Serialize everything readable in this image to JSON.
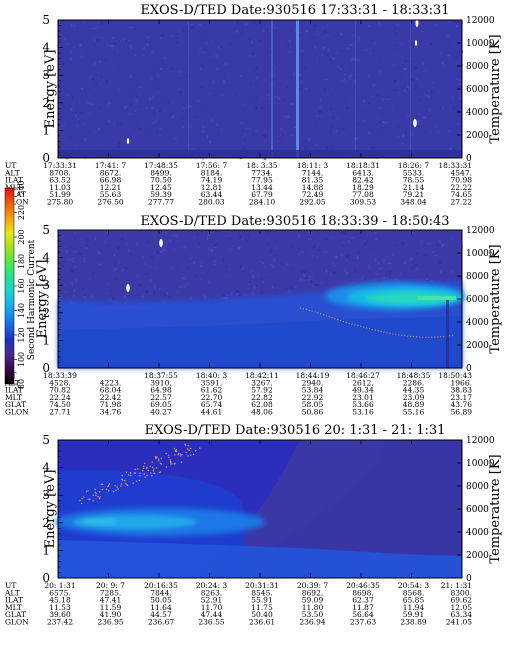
{
  "chart_data": [
    {
      "type": "heatmap",
      "title": "EXOS-D/TED   Date:930516  17:33:31 - 18:33:31",
      "ylabel": "Energy [eV]",
      "y2label": "Temperature [K]",
      "ylim": [
        0,
        5
      ],
      "y2lim": [
        0,
        12000
      ],
      "yticks": [
        0,
        1,
        2,
        3,
        4,
        5
      ],
      "y2ticks": [
        0,
        2000,
        4000,
        6000,
        8000,
        10000,
        12000
      ],
      "xticks": [
        "17:33:31",
        "17:41: 7",
        "17:48:35",
        "17:56: 7",
        "18: 3:35",
        "18:11: 3",
        "18:18:31",
        "18:26: 7",
        "18:33:31"
      ],
      "ephemeris": [
        {
          "label": "UT",
          "values": [
            "17:33:31",
            "17:41: 7",
            "17:48:35",
            "17:56: 7",
            "18: 3:35",
            "18:11: 3",
            "18:18:31",
            "18:26: 7",
            "18:33:31"
          ]
        },
        {
          "label": "ALT",
          "values": [
            "8708.",
            "8672.",
            "8499.",
            "8184.",
            "7734.",
            "7144.",
            "6413.",
            "5533.",
            "4547."
          ]
        },
        {
          "label": "ILAT",
          "values": [
            "63.52",
            "66.98",
            "70.50",
            "74.19",
            "77.95",
            "81.35",
            "82.42",
            "78.55",
            "70.98"
          ]
        },
        {
          "label": "MLT",
          "values": [
            "11.03",
            "12.21",
            "12.45",
            "12.81",
            "13.44",
            "14.88",
            "18.29",
            "21.14",
            "22.22"
          ]
        },
        {
          "label": "GLAT",
          "values": [
            "51.99",
            "55.63",
            "59.39",
            "63.44",
            "67.79",
            "72.49",
            "77.08",
            "79.21",
            "74.65"
          ]
        },
        {
          "label": "GLON",
          "values": [
            "275.80",
            "276.50",
            "277.77",
            "280.03",
            "284.10",
            "292.05",
            "309.53",
            "348.04",
            "27.22"
          ]
        }
      ]
    },
    {
      "type": "heatmap",
      "title": "EXOS-D/TED   Date:930516  18:33:39 - 18:50:43",
      "ylabel": "Energy [eV]",
      "y2label": "Temperature [K]",
      "ylim": [
        0,
        5
      ],
      "y2lim": [
        0,
        12000
      ],
      "yticks": [
        0,
        1,
        2,
        3,
        4,
        5
      ],
      "y2ticks": [
        0,
        2000,
        4000,
        6000,
        8000,
        10000,
        12000
      ],
      "xticks": [
        "18:33:39",
        "18:37:55",
        "18:40: 3",
        "18:42:11",
        "18:44:19",
        "18:46:27",
        "18:48:35",
        "18:50:43"
      ],
      "ephemeris": [
        {
          "label": "UT",
          "values": [
            "18:33:39",
            "",
            "18:37:55",
            "18:40: 3",
            "18:42:11",
            "18:44:19",
            "18:46:27",
            "18:48:35",
            "18:50:43"
          ]
        },
        {
          "label": "ALT",
          "values": [
            "4528.",
            "4223.",
            "3910.",
            "3591.",
            "3267.",
            "2940.",
            "2612.",
            "2286.",
            "1966."
          ]
        },
        {
          "label": "ILAT",
          "values": [
            "70.82",
            "68.04",
            "64.98",
            "61.62",
            "57.92",
            "53.84",
            "49.34",
            "44.35",
            "38.83"
          ]
        },
        {
          "label": "MLT",
          "values": [
            "22.24",
            "22.42",
            "22.57",
            "22.70",
            "22.82",
            "22.92",
            "23.01",
            "23.09",
            "23.17"
          ]
        },
        {
          "label": "GLAT",
          "values": [
            "74.50",
            "71.98",
            "69.05",
            "65.74",
            "62.08",
            "58.05",
            "53.66",
            "48.89",
            "43.76"
          ]
        },
        {
          "label": "GLON",
          "values": [
            "27.71",
            "34.76",
            "40.27",
            "44.61",
            "48.06",
            "50.86",
            "53.16",
            "55.16",
            "56.89"
          ]
        }
      ]
    },
    {
      "type": "heatmap",
      "title": "EXOS-D/TED   Date:930516  20: 1:31 - 21: 1:31",
      "ylabel": "Energy [eV]",
      "y2label": "Temperature [K]",
      "ylim": [
        0,
        5
      ],
      "y2lim": [
        0,
        12000
      ],
      "yticks": [
        0,
        1,
        2,
        3,
        4,
        5
      ],
      "y2ticks": [
        0,
        2000,
        4000,
        6000,
        8000,
        10000,
        12000
      ],
      "xticks": [
        "20: 1:31",
        "20: 9: 7",
        "20:16:35",
        "20:24: 3",
        "20:31:31",
        "20:39: 7",
        "20:46:35",
        "20:54: 3",
        "21: 1:31"
      ],
      "ephemeris": [
        {
          "label": "UT",
          "values": [
            "20: 1:31",
            "20: 9: 7",
            "20:16:35",
            "20:24: 3",
            "20:31:31",
            "20:39: 7",
            "20:46:35",
            "20:54: 3",
            "21: 1:31"
          ]
        },
        {
          "label": "ALT",
          "values": [
            "6575.",
            "7285.",
            "7844.",
            "8263.",
            "8545.",
            "8692.",
            "8698.",
            "8568.",
            "8300."
          ]
        },
        {
          "label": "ILAT",
          "values": [
            "45.18",
            "47.41",
            "50.05",
            "52.91",
            "55.91",
            "59.09",
            "62.37",
            "65.85",
            "69.62"
          ]
        },
        {
          "label": "MLT",
          "values": [
            "11.53",
            "11.59",
            "11.64",
            "11.70",
            "11.75",
            "11.80",
            "11.87",
            "11.94",
            "12.05"
          ]
        },
        {
          "label": "GLAT",
          "values": [
            "39.60",
            "41.90",
            "44.57",
            "47.44",
            "50.40",
            "53.50",
            "56.64",
            "59.91",
            "63.34"
          ]
        },
        {
          "label": "GLON",
          "values": [
            "237.42",
            "236.95",
            "236.67",
            "236.55",
            "236.61",
            "236.94",
            "237.63",
            "238.89",
            "241.05"
          ]
        }
      ]
    }
  ],
  "colorbar": {
    "label": "Second Harmonic Current",
    "min": 80,
    "max": 240,
    "tick_labels": [
      "80",
      "100",
      "120",
      "140",
      "160",
      "180",
      "200",
      "220",
      "240"
    ],
    "colors": [
      "#000000",
      "#3a0a4a",
      "#4b2c8f",
      "#1b34c8",
      "#1570e6",
      "#1aa5e8",
      "#18d0d8",
      "#22e09a",
      "#4ee84a",
      "#9ee01c",
      "#e8e816",
      "#f4a010",
      "#f05a10",
      "#e01010"
    ]
  }
}
